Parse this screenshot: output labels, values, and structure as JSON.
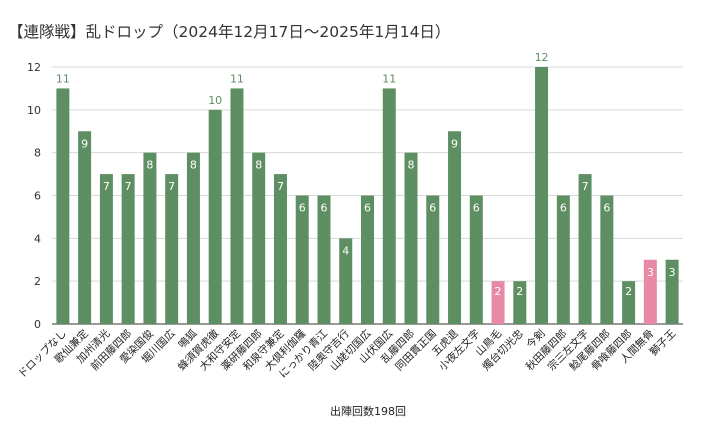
{
  "chart_data": {
    "type": "bar",
    "title": "【連隊戦】乱ドロップ（2024年12月17日～2025年1月14日）",
    "xlabel": "出陣回数198回",
    "ylabel": "",
    "ylim": [
      0,
      12
    ],
    "yticks": [
      0,
      2,
      4,
      6,
      8,
      10,
      12
    ],
    "grid": true,
    "colors": {
      "default": "#5e8f62",
      "highlight": "#e88aa6"
    },
    "categories": [
      "ドロップなし",
      "歌仙兼定",
      "加州清光",
      "前田藤四郎",
      "愛染国俊",
      "堀川国広",
      "鳴狐",
      "蜂須賀虎徹",
      "大和守安定",
      "薬研藤四郎",
      "和泉守兼定",
      "大倶利伽羅",
      "にっかり青江",
      "陸奥守吉行",
      "山姥切国広",
      "山伏国広",
      "乱藤四郎",
      "同田貫正国",
      "五虎退",
      "小夜左文字",
      "山鳥毛",
      "燭台切光忠",
      "今剣",
      "秋田藤四郎",
      "宗三左文字",
      "鯰尾藤四郎",
      "骨喰藤四郎",
      "人間無骨",
      "獅子王"
    ],
    "values": [
      11,
      9,
      7,
      7,
      8,
      7,
      8,
      10,
      11,
      8,
      7,
      6,
      6,
      4,
      6,
      11,
      8,
      6,
      9,
      6,
      2,
      2,
      12,
      6,
      7,
      6,
      2,
      3,
      3
    ],
    "highlighted": [
      false,
      false,
      false,
      false,
      false,
      false,
      false,
      false,
      false,
      false,
      false,
      false,
      false,
      false,
      false,
      false,
      false,
      false,
      false,
      false,
      true,
      false,
      false,
      false,
      false,
      false,
      false,
      true,
      false
    ]
  }
}
